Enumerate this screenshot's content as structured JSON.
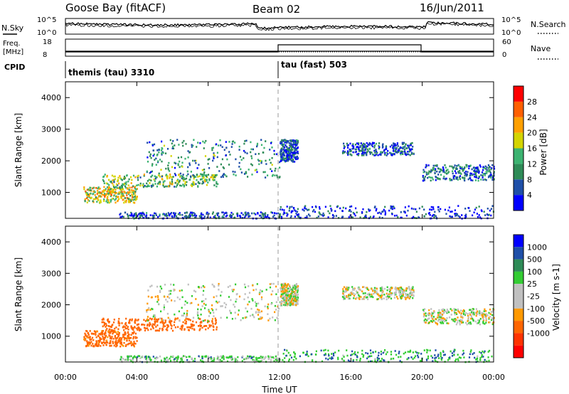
{
  "header": {
    "station": "Goose Bay (fitACF)",
    "beam": "Beam 02",
    "date": "16/Jun/2011"
  },
  "noise_panel": {
    "left_label": "N.Sky",
    "right_label": "N.Search",
    "left_ticks": [
      "10^5",
      "10^0"
    ],
    "right_ticks": [
      "10^5",
      "10^0"
    ]
  },
  "freq_panel": {
    "left_label_1": "Freq.",
    "left_label_2": "[MHz]",
    "right_label": "Nave",
    "left_ticks": [
      "18",
      "8"
    ],
    "right_ticks": [
      "60",
      "0"
    ]
  },
  "cpid": {
    "label": "CPID",
    "segments": [
      {
        "name": "themis (tau) 3310",
        "start_hour": 0,
        "end_hour": 12
      },
      {
        "name": "tau (fast) 503",
        "start_hour": 12,
        "end_hour": 24
      }
    ]
  },
  "colors": {
    "power": [
      "#0000ff",
      "#1f4fa8",
      "#2e8b57",
      "#3cb371",
      "#d4d400",
      "#ffa000",
      "#ff6000",
      "#ff0000"
    ],
    "velocity": [
      "#0000ff",
      "#1f4fa8",
      "#2e8b57",
      "#33cc33",
      "#c0c0c0",
      "#c0c0c0",
      "#ff9900",
      "#ff6600",
      "#ff3300",
      "#ff0000"
    ]
  },
  "chart_data": [
    {
      "type": "heatmap",
      "title": "Power",
      "ylabel": "Slant Range [km]",
      "ylim": [
        180,
        4500
      ],
      "xlim": [
        0,
        24
      ],
      "yticks": [
        "1000",
        "2000",
        "3000",
        "4000"
      ],
      "colorbar": {
        "label": "Power [dB]",
        "ticks": [
          "4",
          "8",
          "12",
          "16",
          "20",
          "24",
          "28"
        ],
        "range": [
          0,
          32
        ]
      },
      "scatter_regions": [
        {
          "time": [
            2.0,
            8.5
          ],
          "range": [
            1200,
            1600
          ],
          "value": 14
        },
        {
          "time": [
            4.5,
            12.0
          ],
          "range": [
            1500,
            2700
          ],
          "value": 10
        },
        {
          "time": [
            1.0,
            4.0
          ],
          "range": [
            700,
            1200
          ],
          "value": 18
        },
        {
          "time": [
            3.0,
            12.0
          ],
          "range": [
            200,
            400
          ],
          "value": 6
        },
        {
          "time": [
            12.0,
            24.0
          ],
          "range": [
            200,
            600
          ],
          "value": 4
        },
        {
          "time": [
            12.0,
            13.0
          ],
          "range": [
            2000,
            2700
          ],
          "value": 6
        },
        {
          "time": [
            15.5,
            19.5
          ],
          "range": [
            2200,
            2600
          ],
          "value": 6
        },
        {
          "time": [
            20.0,
            24.0
          ],
          "range": [
            1400,
            1900
          ],
          "value": 8
        }
      ]
    },
    {
      "type": "heatmap",
      "title": "Velocity",
      "ylabel": "Slant Range [km]",
      "xlabel": "Time UT",
      "ylim": [
        180,
        4500
      ],
      "xlim": [
        0,
        24
      ],
      "yticks": [
        "1000",
        "2000",
        "3000",
        "4000"
      ],
      "xticks": [
        "00:00",
        "04:00",
        "08:00",
        "12:00",
        "16:00",
        "20:00",
        "00:00"
      ],
      "colorbar": {
        "label": "Velocity [m s-1]",
        "ticks": [
          "1000",
          "500",
          "100",
          "25",
          "-25",
          "-100",
          "-500",
          "-1000"
        ]
      },
      "scatter_regions": [
        {
          "time": [
            2.0,
            8.5
          ],
          "range": [
            1200,
            1600
          ],
          "value": -200
        },
        {
          "time": [
            4.5,
            12.0
          ],
          "range": [
            1500,
            2700
          ],
          "value": 0
        },
        {
          "time": [
            1.0,
            4.0
          ],
          "range": [
            700,
            1200
          ],
          "value": -150
        },
        {
          "time": [
            3.0,
            12.0
          ],
          "range": [
            200,
            400
          ],
          "value": 50
        },
        {
          "time": [
            12.0,
            24.0
          ],
          "range": [
            200,
            600
          ],
          "value": 80
        },
        {
          "time": [
            12.0,
            13.0
          ],
          "range": [
            2000,
            2700
          ],
          "value": 0
        },
        {
          "time": [
            15.5,
            19.5
          ],
          "range": [
            2200,
            2600
          ],
          "value": 0
        },
        {
          "time": [
            20.0,
            24.0
          ],
          "range": [
            1400,
            1900
          ],
          "value": 0
        }
      ]
    }
  ]
}
